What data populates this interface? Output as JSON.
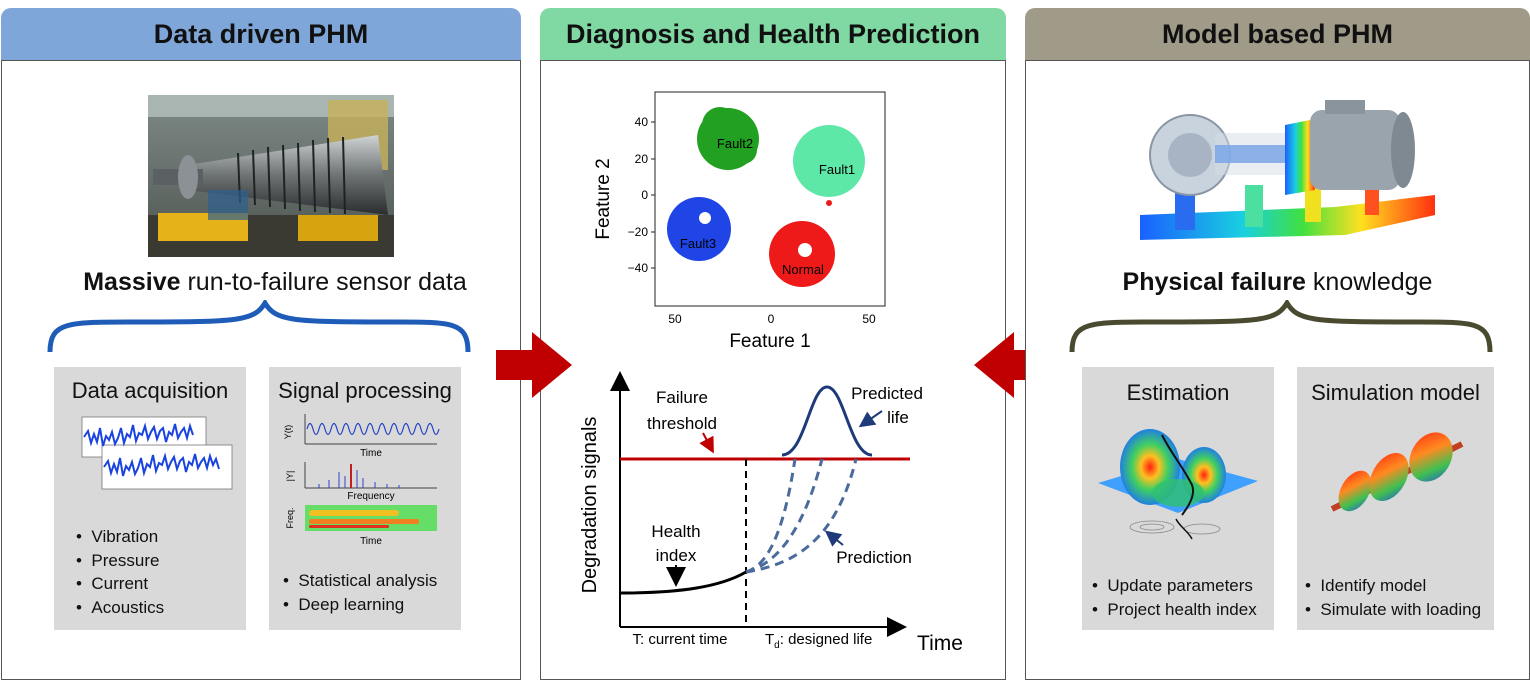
{
  "headers": {
    "left": "Data driven PHM",
    "middle": "Diagnosis and Health Prediction",
    "right": "Model based PHM"
  },
  "left": {
    "caption_bold": "Massive",
    "caption_rest": " run-to-failure sensor data",
    "acquisition": {
      "title": "Data acquisition",
      "items": [
        "Vibration",
        "Pressure",
        "Current",
        "Acoustics"
      ]
    },
    "processing": {
      "title": "Signal processing",
      "plot_labels": [
        "Y(t)",
        "Time",
        "|Y|",
        "Frequency",
        "Freq.",
        "Time"
      ],
      "items": [
        "Statistical analysis",
        "Deep learning"
      ]
    }
  },
  "middle": {
    "scatter": {
      "xlabel": "Feature 1",
      "ylabel": "Feature 2",
      "xticks": [
        "50",
        "0",
        "50"
      ],
      "yticks": [
        "40",
        "20",
        "0",
        "−20",
        "−40"
      ],
      "clusters": [
        {
          "name": "Fault2",
          "color": "#22a022"
        },
        {
          "name": "Fault1",
          "color": "#5ee8a8"
        },
        {
          "name": "Fault3",
          "color": "#1f45e6"
        },
        {
          "name": "Normal",
          "color": "#ee1a1a"
        }
      ]
    },
    "degradation": {
      "ylabel": "Degradation signals",
      "xlabel": "Time",
      "failure_threshold": [
        "Failure",
        "threshold"
      ],
      "predicted_life": [
        "Predicted",
        "life"
      ],
      "health_index": [
        "Health",
        "index"
      ],
      "prediction": "Prediction",
      "current_time": "T: current time",
      "designed_life_sym": "T",
      "designed_life_sub": "d",
      "designed_life_rest": ": designed life"
    }
  },
  "right": {
    "caption_bold": "Physical failure",
    "caption_rest": " knowledge",
    "estimation": {
      "title": "Estimation",
      "items": [
        "Update parameters",
        "Project health index"
      ]
    },
    "simulation": {
      "title": "Simulation model",
      "items": [
        "Identify model",
        "Simulate with loading"
      ]
    }
  },
  "colors": {
    "left_header": "#7fa6d9",
    "middle_header": "#80d8a3",
    "right_header": "#a09b89",
    "arrow": "#c00000",
    "threshold": "#c00000",
    "prediction_curve": "#4a6b9b",
    "brace_left": "#1f5cb8",
    "brace_right": "#4a4a30"
  }
}
